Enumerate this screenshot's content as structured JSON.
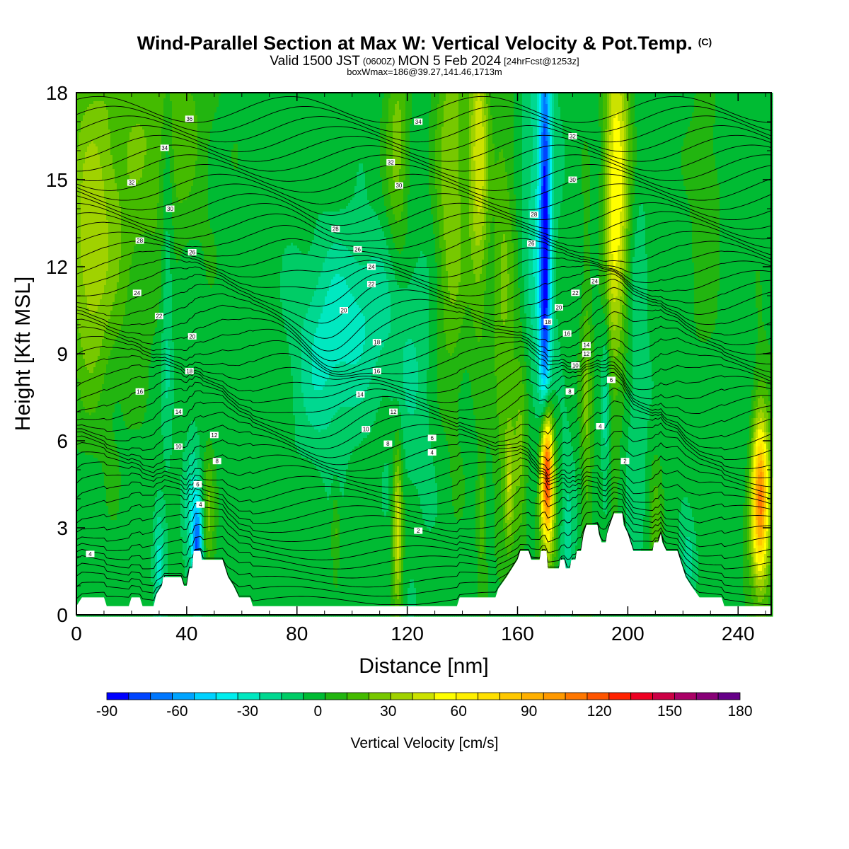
{
  "title": {
    "main": "Wind-Parallel Section at Max W: Vertical Velocity & Pot.Temp.",
    "copyright": "(C)",
    "valid_prefix": "Valid 1500 JST",
    "valid_utc": "(0600Z)",
    "valid_date": "MON 5 Feb 2024",
    "forecast": "[24hrFcst@1253z]",
    "boxline": "boxWmax=186@39.27,141.46,1713m"
  },
  "chart_data": {
    "type": "heatmap",
    "xlabel": "Distance [nm]",
    "ylabel": "Height [Kft MSL]",
    "xlim": [
      0,
      252
    ],
    "ylim": [
      0,
      18
    ],
    "x_ticks": [
      "0",
      "40",
      "80",
      "120",
      "160",
      "200",
      "240"
    ],
    "y_ticks": [
      "0",
      "3",
      "6",
      "9",
      "12",
      "15",
      "18"
    ],
    "background_w": 5,
    "w_features": [
      {
        "x": 170.5,
        "y": 5.0,
        "sx": 1.4,
        "sy": 1.6,
        "w": 145
      },
      {
        "x": 170.5,
        "y": 3.6,
        "sx": 2.5,
        "sy": 2.2,
        "w": 45
      },
      {
        "x": 170.0,
        "y": 12.0,
        "sx": 1.4,
        "sy": 6.5,
        "w": -75
      },
      {
        "x": 168.0,
        "y": 14.0,
        "sx": 4.0,
        "sy": 6.0,
        "w": -25
      },
      {
        "x": 185.0,
        "y": 7.0,
        "sx": 1.5,
        "sy": 4.0,
        "w": 25
      },
      {
        "x": 197.0,
        "y": 15.0,
        "sx": 3.0,
        "sy": 4.0,
        "w": 52
      },
      {
        "x": 194.0,
        "y": 14.0,
        "sx": 2.2,
        "sy": 6.0,
        "w": 25
      },
      {
        "x": 192.0,
        "y": 7.0,
        "sx": 1.2,
        "sy": 3.0,
        "w": -25
      },
      {
        "x": 203.0,
        "y": 9.0,
        "sx": 3.0,
        "sy": 5.0,
        "w": -15
      },
      {
        "x": 116.5,
        "y": 3.0,
        "sx": 1.3,
        "sy": 2.0,
        "w": 55
      },
      {
        "x": 116.5,
        "y": 16.0,
        "sx": 3.0,
        "sy": 3.0,
        "w": 30
      },
      {
        "x": 136.0,
        "y": 15.0,
        "sx": 4.0,
        "sy": 5.0,
        "w": 35
      },
      {
        "x": 146.0,
        "y": 16.0,
        "sx": 2.5,
        "sy": 4.0,
        "w": 50
      },
      {
        "x": 155.0,
        "y": 11.0,
        "sx": 3.0,
        "sy": 6.0,
        "w": 25
      },
      {
        "x": 161.0,
        "y": 6.0,
        "sx": 2.0,
        "sy": 2.5,
        "w": 28
      },
      {
        "x": 178.0,
        "y": 3.0,
        "sx": 2.0,
        "sy": 2.0,
        "w": -20
      },
      {
        "x": 90.0,
        "y": 9.0,
        "sx": 8.0,
        "sy": 2.5,
        "w": -25
      },
      {
        "x": 105.0,
        "y": 10.5,
        "sx": 9.0,
        "sy": 2.0,
        "w": -22
      },
      {
        "x": 122.0,
        "y": 8.0,
        "sx": 6.0,
        "sy": 4.0,
        "w": -12
      },
      {
        "x": 44.0,
        "y": 2.3,
        "sx": 1.2,
        "sy": 1.2,
        "w": -65
      },
      {
        "x": 42.0,
        "y": 3.5,
        "sx": 2.0,
        "sy": 2.0,
        "w": -25
      },
      {
        "x": 48.0,
        "y": 3.5,
        "sx": 1.5,
        "sy": 1.5,
        "w": 25
      },
      {
        "x": 30.0,
        "y": 2.0,
        "sx": 1.5,
        "sy": 1.5,
        "w": -28
      },
      {
        "x": 33.0,
        "y": 12.0,
        "sx": 1.5,
        "sy": 5.0,
        "w": -20
      },
      {
        "x": 10.0,
        "y": 15.0,
        "sx": 12.0,
        "sy": 5.0,
        "w": 25
      },
      {
        "x": 35.0,
        "y": 17.0,
        "sx": 10.0,
        "sy": 3.0,
        "w": 20
      },
      {
        "x": 5.0,
        "y": 12.0,
        "sx": 5.0,
        "sy": 3.0,
        "w": 25
      },
      {
        "x": 248.0,
        "y": 4.0,
        "sx": 2.0,
        "sy": 1.8,
        "w": 82
      },
      {
        "x": 248.0,
        "y": 4.0,
        "sx": 3.5,
        "sy": 3.0,
        "w": 35
      },
      {
        "x": 244.0,
        "y": 6.0,
        "sx": 2.0,
        "sy": 2.0,
        "w": -12
      },
      {
        "x": 94.0,
        "y": 3.0,
        "sx": 1.0,
        "sy": 1.0,
        "w": 20
      },
      {
        "x": 147.0,
        "y": 3.5,
        "sx": 1.2,
        "sy": 1.5,
        "w": 25
      },
      {
        "x": 157.0,
        "y": 4.5,
        "sx": 1.0,
        "sy": 1.5,
        "w": 30
      },
      {
        "x": 210.0,
        "y": 3.0,
        "sx": 1.5,
        "sy": 1.5,
        "w": 20
      },
      {
        "x": 222.0,
        "y": 1.8,
        "sx": 2.0,
        "sy": 1.0,
        "w": -20
      },
      {
        "x": 228.0,
        "y": 14.0,
        "sx": 4.0,
        "sy": 4.0,
        "w": 12
      }
    ],
    "terrain": [
      [
        0,
        0.3
      ],
      [
        2,
        0.6
      ],
      [
        10,
        0.6
      ],
      [
        11,
        0.3
      ],
      [
        19,
        0.3
      ],
      [
        20,
        0.6
      ],
      [
        23,
        0.6
      ],
      [
        24,
        0.3
      ],
      [
        28,
        0.3
      ],
      [
        29,
        0.7
      ],
      [
        31,
        1.0
      ],
      [
        31.5,
        1.3
      ],
      [
        38,
        1.3
      ],
      [
        39,
        1.0
      ],
      [
        40,
        1.0
      ],
      [
        41,
        1.6
      ],
      [
        42,
        1.6
      ],
      [
        42.5,
        2.2
      ],
      [
        45,
        2.2
      ],
      [
        45.5,
        1.9
      ],
      [
        53,
        1.9
      ],
      [
        54,
        1.6
      ],
      [
        55,
        1.3
      ],
      [
        57,
        1.0
      ],
      [
        59,
        0.6
      ],
      [
        63,
        0.6
      ],
      [
        64,
        0.3
      ],
      [
        138,
        0.3
      ],
      [
        139,
        0.6
      ],
      [
        152,
        0.6
      ],
      [
        153,
        0.9
      ],
      [
        156,
        1.3
      ],
      [
        158,
        1.6
      ],
      [
        160,
        1.9
      ],
      [
        161,
        2.2
      ],
      [
        164,
        2.2
      ],
      [
        165,
        1.9
      ],
      [
        168,
        1.9
      ],
      [
        168.5,
        2.2
      ],
      [
        170.5,
        2.2
      ],
      [
        171,
        1.6
      ],
      [
        175,
        1.6
      ],
      [
        175.5,
        1.9
      ],
      [
        177,
        1.9
      ],
      [
        177.5,
        1.6
      ],
      [
        179,
        1.6
      ],
      [
        179.5,
        1.9
      ],
      [
        181,
        1.9
      ],
      [
        181.5,
        2.2
      ],
      [
        183,
        2.2
      ],
      [
        184,
        2.8
      ],
      [
        185,
        3.1
      ],
      [
        189,
        3.1
      ],
      [
        189.5,
        2.8
      ],
      [
        190.5,
        2.5
      ],
      [
        192,
        2.5
      ],
      [
        192.5,
        2.8
      ],
      [
        193.5,
        3.1
      ],
      [
        195,
        3.5
      ],
      [
        198,
        3.5
      ],
      [
        198.5,
        3.1
      ],
      [
        200,
        2.8
      ],
      [
        201,
        2.5
      ],
      [
        202,
        2.2
      ],
      [
        209,
        2.2
      ],
      [
        209.5,
        2.5
      ],
      [
        211,
        2.5
      ],
      [
        212,
        2.8
      ],
      [
        212.5,
        2.5
      ],
      [
        214,
        2.2
      ],
      [
        218,
        2.2
      ],
      [
        219,
        1.9
      ],
      [
        220,
        1.6
      ],
      [
        221,
        1.3
      ],
      [
        223,
        1.0
      ],
      [
        226,
        0.6
      ],
      [
        234,
        0.6
      ],
      [
        235,
        0.3
      ],
      [
        252,
        0.3
      ]
    ],
    "theta_labels": [
      {
        "text": "4",
        "x": 5,
        "y": 2.1
      },
      {
        "text": "36",
        "x": 41,
        "y": 17.1
      },
      {
        "text": "34",
        "x": 32,
        "y": 16.1
      },
      {
        "text": "32",
        "x": 20,
        "y": 14.9
      },
      {
        "text": "30",
        "x": 34,
        "y": 14.0
      },
      {
        "text": "28",
        "x": 23,
        "y": 12.9
      },
      {
        "text": "26",
        "x": 42,
        "y": 12.5
      },
      {
        "text": "24",
        "x": 22,
        "y": 11.1
      },
      {
        "text": "22",
        "x": 30,
        "y": 10.3
      },
      {
        "text": "20",
        "x": 42,
        "y": 9.6
      },
      {
        "text": "18",
        "x": 41,
        "y": 8.4
      },
      {
        "text": "16",
        "x": 23,
        "y": 7.7
      },
      {
        "text": "14",
        "x": 37,
        "y": 7.0
      },
      {
        "text": "12",
        "x": 50,
        "y": 6.2
      },
      {
        "text": "10",
        "x": 37,
        "y": 5.8
      },
      {
        "text": "8",
        "x": 51,
        "y": 5.3
      },
      {
        "text": "6",
        "x": 44,
        "y": 4.5
      },
      {
        "text": "4",
        "x": 45,
        "y": 3.8
      },
      {
        "text": "34",
        "x": 124,
        "y": 17.0
      },
      {
        "text": "32",
        "x": 114,
        "y": 15.6
      },
      {
        "text": "30",
        "x": 117,
        "y": 14.8
      },
      {
        "text": "28",
        "x": 94,
        "y": 13.3
      },
      {
        "text": "26",
        "x": 102,
        "y": 12.6
      },
      {
        "text": "24",
        "x": 107,
        "y": 12.0
      },
      {
        "text": "22",
        "x": 107,
        "y": 11.4
      },
      {
        "text": "20",
        "x": 97,
        "y": 10.5
      },
      {
        "text": "18",
        "x": 109,
        "y": 9.4
      },
      {
        "text": "16",
        "x": 109,
        "y": 8.4
      },
      {
        "text": "14",
        "x": 103,
        "y": 7.6
      },
      {
        "text": "12",
        "x": 115,
        "y": 7.0
      },
      {
        "text": "10",
        "x": 105,
        "y": 6.4
      },
      {
        "text": "8",
        "x": 113,
        "y": 5.9
      },
      {
        "text": "6",
        "x": 129,
        "y": 6.1
      },
      {
        "text": "4",
        "x": 129,
        "y": 5.6
      },
      {
        "text": "2",
        "x": 124,
        "y": 2.9
      },
      {
        "text": "32",
        "x": 180,
        "y": 16.5
      },
      {
        "text": "30",
        "x": 180,
        "y": 15.0
      },
      {
        "text": "28",
        "x": 166,
        "y": 13.8
      },
      {
        "text": "26",
        "x": 165,
        "y": 12.8
      },
      {
        "text": "24",
        "x": 188,
        "y": 11.5
      },
      {
        "text": "22",
        "x": 181,
        "y": 11.1
      },
      {
        "text": "20",
        "x": 175,
        "y": 10.6
      },
      {
        "text": "18",
        "x": 171,
        "y": 10.1
      },
      {
        "text": "16",
        "x": 178,
        "y": 9.7
      },
      {
        "text": "14",
        "x": 185,
        "y": 9.3
      },
      {
        "text": "12",
        "x": 185,
        "y": 9.0
      },
      {
        "text": "10",
        "x": 181,
        "y": 8.6
      },
      {
        "text": "8",
        "x": 179,
        "y": 7.7
      },
      {
        "text": "6",
        "x": 194,
        "y": 8.1
      },
      {
        "text": "4",
        "x": 190,
        "y": 6.5
      },
      {
        "text": "2",
        "x": 199,
        "y": 5.3
      }
    ],
    "colorbar": {
      "label": "Vertical Velocity [cm/s]",
      "ticks": [
        "-90",
        "-60",
        "-30",
        "0",
        "30",
        "60",
        "90",
        "120",
        "150",
        "180"
      ],
      "range": [
        -90,
        180
      ],
      "levels_per_segment": 27,
      "colors": [
        "#0000ff",
        "#0044ff",
        "#0077ff",
        "#00a4ff",
        "#00d2ff",
        "#00eeee",
        "#00e8c0",
        "#00d890",
        "#00cc66",
        "#00bb33",
        "#22b510",
        "#44bb00",
        "#77c800",
        "#a0d200",
        "#cce200",
        "#ffff00",
        "#fff000",
        "#ffe000",
        "#ffc800",
        "#ffb000",
        "#ff9900",
        "#ff7700",
        "#ff5500",
        "#ff2200",
        "#ee0022",
        "#cc0044",
        "#aa0066",
        "#880077",
        "#660088"
      ]
    }
  }
}
